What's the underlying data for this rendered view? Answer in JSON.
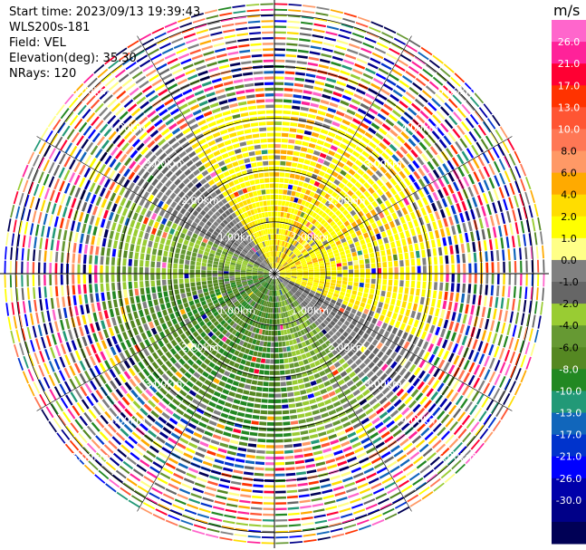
{
  "header": {
    "start_time": "Start time: 2023/09/13 19:39:43",
    "instrument": "WLS200s-181",
    "field": "Field: VEL",
    "elevation": "Elevation(deg): 35.30",
    "nrays": "NRays: 120"
  },
  "chart_data": {
    "type": "heatmap",
    "projection": "polar PPI",
    "field": "VEL",
    "units": "m/s",
    "nrays": 120,
    "range_rings_km": [
      "1.00km",
      "2.00km",
      "3.00km",
      "4.00km",
      "5.00km"
    ],
    "colorbar": {
      "unit_label": "m/s",
      "ticks": [
        "26.0",
        "21.0",
        "17.0",
        "13.0",
        "10.0",
        "8.0",
        "6.0",
        "4.0",
        "2.0",
        "1.0",
        "0.0",
        "-1.0",
        "-2.0",
        "-4.0",
        "-6.0",
        "-8.0",
        "-10.0",
        "-13.0",
        "-17.0",
        "-21.0",
        "-26.0",
        "-30.0"
      ],
      "colors": [
        "#ff66cc",
        "#ff2299",
        "#ff0033",
        "#ff3300",
        "#ff5533",
        "#ff7755",
        "#ff9966",
        "#ffaa00",
        "#ffdd00",
        "#ffff00",
        "#ffff88",
        "#808080",
        "#666666",
        "#99cc33",
        "#669933",
        "#558822",
        "#228822",
        "#229977",
        "#1166bb",
        "#0033cc",
        "#0000ff",
        "#0000aa",
        "#000088",
        "#000055"
      ]
    }
  }
}
